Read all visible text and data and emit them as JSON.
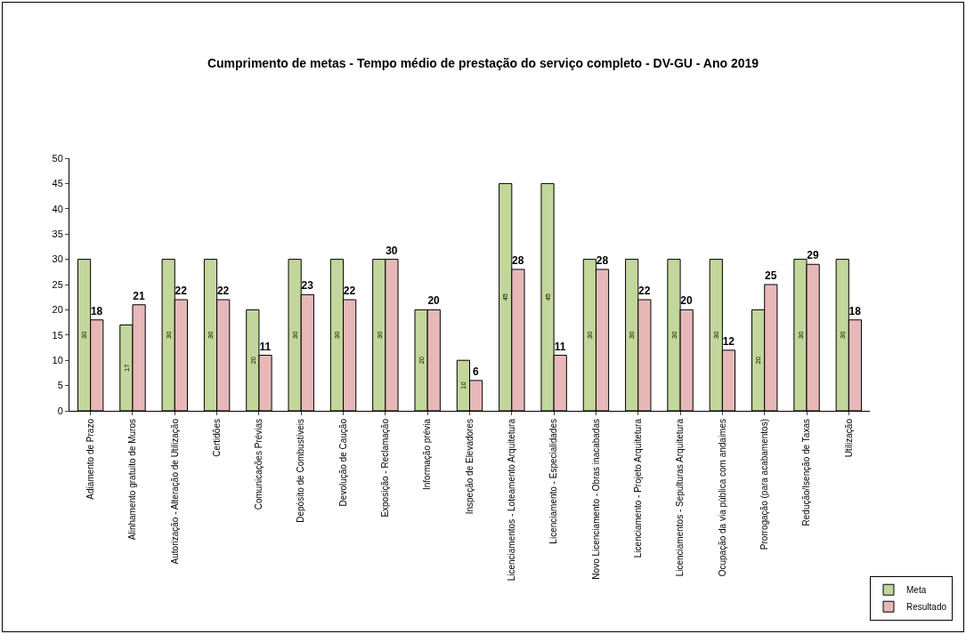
{
  "chart_data": {
    "type": "bar",
    "title": "Cumprimento de metas - Tempo médio de prestação do serviço completo - DV-GU - Ano 2019",
    "categories": [
      "Adiamento de Prazo",
      "Alinhamento gratuito de Muros",
      "Autorização - Alteração de Utilização",
      "Certidões",
      "Comunicações Prévias",
      "Depósito de Combustíveis",
      "Devolução de Caução",
      "Exposição - Reclamação",
      "Informação prévia",
      "Inspeção de Elevadores",
      "Licenciamentos - Loteamento Arquitetura",
      "Licenciamento - Especialidades",
      "Novo Licenciamento - Obras inacabadas",
      "Licenciamento - Projeto Arquitetura",
      "Licenciamentos - Sepulturas Arquitetura",
      "Ocupação da via pública com andaimes",
      "Prorrogação (para acabamentos)",
      "Redução/Isenção de Taxas",
      "Utilização"
    ],
    "series": [
      {
        "name": "Meta",
        "color": "#c3d69b",
        "values": [
          30,
          17,
          30,
          30,
          20,
          30,
          30,
          30,
          20,
          10,
          45,
          45,
          30,
          30,
          30,
          30,
          20,
          30,
          30
        ]
      },
      {
        "name": "Resultado",
        "color": "#e6b9b8",
        "values": [
          18,
          21,
          22,
          22,
          11,
          23,
          22,
          30,
          20,
          6,
          28,
          11,
          28,
          22,
          20,
          12,
          25,
          29,
          18
        ]
      }
    ],
    "ylim": [
      0,
      50
    ],
    "yticks": [
      0,
      5,
      10,
      15,
      20,
      25,
      30,
      35,
      40,
      45,
      50
    ],
    "data_labels": true,
    "legend": "bottom right"
  }
}
